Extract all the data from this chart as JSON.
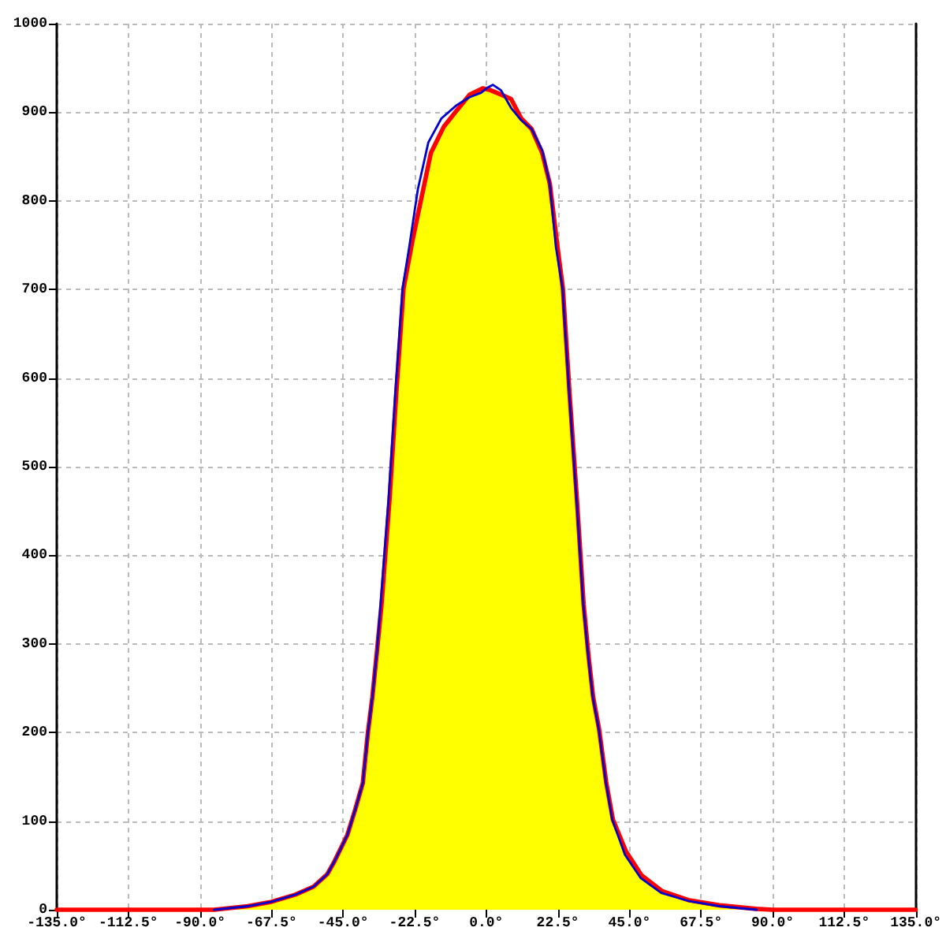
{
  "chart_data": {
    "type": "area",
    "xlim": [
      -135,
      135
    ],
    "xticks": [
      {
        "value": -135,
        "label": "-135.0°"
      },
      {
        "value": -112.5,
        "label": "-112.5°"
      },
      {
        "value": -90,
        "label": "-90.0°"
      },
      {
        "value": -67.5,
        "label": "-67.5°"
      },
      {
        "value": -45,
        "label": "-45.0°"
      },
      {
        "value": -22.5,
        "label": "-22.5°"
      },
      {
        "value": 0,
        "label": "0.0°"
      },
      {
        "value": 22.5,
        "label": "22.5°"
      },
      {
        "value": 45,
        "label": "45.0°"
      },
      {
        "value": 67.5,
        "label": "67.5°"
      },
      {
        "value": 90,
        "label": "90.0°"
      },
      {
        "value": 112.5,
        "label": "112.5°"
      },
      {
        "value": 135,
        "label": "135.0°"
      }
    ],
    "ylim": [
      0,
      1000
    ],
    "yticks": [
      0,
      100,
      200,
      300,
      400,
      500,
      600,
      700,
      800,
      900,
      1000
    ],
    "grid": true,
    "marker": "none",
    "series": [
      {
        "type": "area",
        "color": "#ffff00",
        "x": [
          -85.5,
          -75,
          -67.5,
          -60,
          -54.3,
          -50,
          -47.8,
          -43.7,
          -41.2,
          -38.8,
          -37.2,
          -35.8,
          -34.4,
          -32.9,
          -30.4,
          -28.3,
          -26,
          -23.2,
          -19.8,
          -17.4,
          -13.3,
          -9.3,
          -5.2,
          -1.1,
          1.3,
          4.6,
          7.8,
          11,
          14.3,
          17.6,
          20,
          22.4,
          24.1,
          26.2,
          28.5,
          30.6,
          32.2,
          33.6,
          35.5,
          37.7,
          39.8,
          43.9,
          48.8,
          55.3,
          63.5,
          73.3,
          84.8
        ],
        "values": [
          0,
          4,
          9,
          17,
          26,
          40,
          54,
          84,
          113,
          143,
          200,
          240,
          290,
          345,
          463,
          582,
          701,
          755,
          813,
          854,
          884,
          902,
          920,
          927,
          925,
          920,
          915,
          893,
          881,
          854,
          819,
          748,
          701,
          582,
          463,
          345,
          285,
          240,
          203,
          144,
          102,
          66,
          39,
          21,
          11,
          5,
          1
        ]
      },
      {
        "type": "line",
        "color": "#0000cc",
        "x": [
          -85.5,
          -75,
          -67.5,
          -60,
          -54.3,
          -50,
          -47.8,
          -43.7,
          -41.2,
          -38.8,
          -37.2,
          -35.8,
          -34.4,
          -33.2,
          -30.7,
          -28.6,
          -26.3,
          -24.2,
          -21.5,
          -18.2,
          -14.1,
          -9.3,
          -5.2,
          -1.6,
          0.5,
          2.1,
          4.6,
          7.8,
          11,
          14.3,
          17.6,
          20,
          21.9,
          24,
          26.1,
          28.4,
          30.5,
          32.1,
          33.5,
          35.4,
          37.6,
          39.6,
          43.6,
          48.5,
          55,
          63.5,
          73.3,
          85
        ],
        "values": [
          0,
          4,
          9,
          17,
          26,
          40,
          54,
          84,
          113,
          143,
          200,
          240,
          290,
          345,
          463,
          582,
          701,
          748,
          813,
          866,
          893,
          908,
          917,
          922,
          928,
          931,
          925,
          905,
          891,
          881,
          857,
          819,
          748,
          701,
          582,
          463,
          345,
          285,
          240,
          203,
          144,
          102,
          62,
          36,
          19,
          10,
          4,
          0
        ]
      },
      {
        "type": "line",
        "color": "#ff0000",
        "x": [
          -135,
          -90,
          -85.5,
          -75,
          -67.5,
          -60,
          -54.3,
          -50,
          -47.8,
          -43.7,
          -41.2,
          -38.8,
          -37.2,
          -35.8,
          -34.4,
          -32.9,
          -30.4,
          -28.3,
          -26,
          -23.2,
          -19.8,
          -17.4,
          -13.3,
          -9.3,
          -5.2,
          -1.1,
          1.3,
          4.6,
          7.8,
          11,
          14.3,
          17.6,
          20,
          22.4,
          24.1,
          26.2,
          28.5,
          30.6,
          32.2,
          33.6,
          35.5,
          37.7,
          39.8,
          43.9,
          48.8,
          55.3,
          63.5,
          73.3,
          84.8,
          90,
          135
        ],
        "values": [
          0,
          0,
          0,
          4,
          9,
          17,
          26,
          40,
          54,
          84,
          113,
          143,
          200,
          240,
          290,
          345,
          463,
          582,
          701,
          755,
          813,
          854,
          884,
          902,
          920,
          927,
          925,
          920,
          915,
          893,
          881,
          854,
          819,
          748,
          701,
          582,
          463,
          345,
          285,
          240,
          203,
          144,
          102,
          66,
          39,
          21,
          11,
          5,
          1,
          0,
          0
        ]
      }
    ]
  }
}
